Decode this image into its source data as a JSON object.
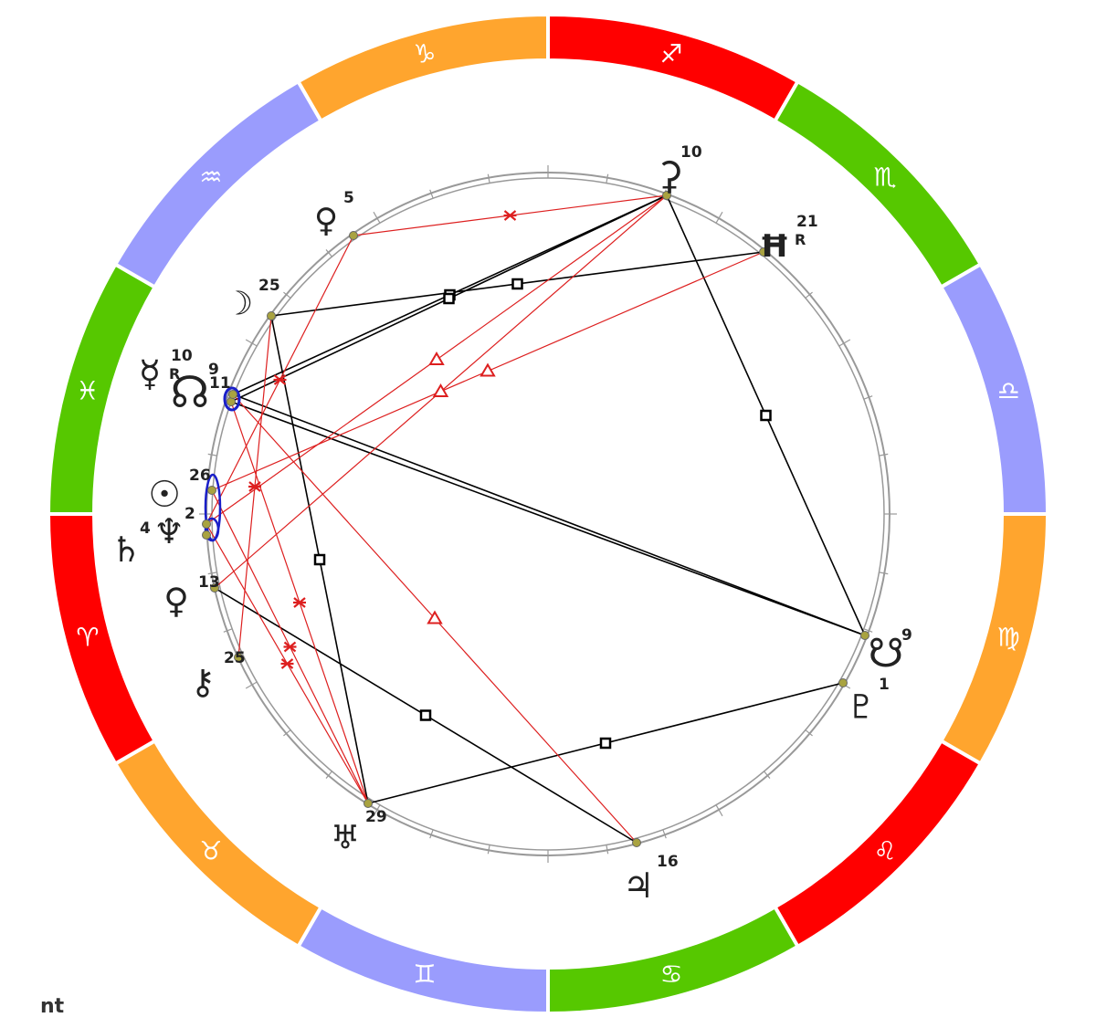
{
  "footer_label": "nt",
  "colors": {
    "fire": "#ff0000",
    "earth": "#ffa52e",
    "air": "#9a9cfd",
    "water": "#56c800",
    "aspect_hard": "#000000",
    "aspect_soft": "#dd1f1f",
    "stellium": "#1a1fc9",
    "ring": "#999999",
    "planet_dot": "#a9a340"
  },
  "zodiac_segments": [
    {
      "name": "Sagittarius",
      "symbol": "♐",
      "element": "fire"
    },
    {
      "name": "Scorpio",
      "symbol": "♏",
      "element": "water"
    },
    {
      "name": "Libra",
      "symbol": "♎",
      "element": "air"
    },
    {
      "name": "Virgo",
      "symbol": "♍",
      "element": "earth"
    },
    {
      "name": "Leo",
      "symbol": "♌",
      "element": "fire"
    },
    {
      "name": "Cancer",
      "symbol": "♋",
      "element": "water"
    },
    {
      "name": "Gemini",
      "symbol": "♊",
      "element": "air"
    },
    {
      "name": "Taurus",
      "symbol": "♉",
      "element": "earth"
    },
    {
      "name": "Aries",
      "symbol": "♈",
      "element": "fire"
    },
    {
      "name": "Pisces",
      "symbol": "♓",
      "element": "water"
    },
    {
      "name": "Aquarius",
      "symbol": "♒",
      "element": "air"
    },
    {
      "name": "Capricorn",
      "symbol": "♑",
      "element": "earth"
    }
  ],
  "planets": [
    {
      "id": "ceres",
      "symbol": "⚳",
      "degree": "10",
      "retro": ""
    },
    {
      "id": "uranus-h",
      "symbol": "Ħ",
      "degree": "21",
      "retro": "R"
    },
    {
      "id": "pallas",
      "symbol": "♀",
      "degree": "5",
      "retro": ""
    },
    {
      "id": "moon",
      "symbol": "☽",
      "degree": "25",
      "retro": ""
    },
    {
      "id": "mercury",
      "symbol": "☿",
      "degree": "10",
      "retro": "R"
    },
    {
      "id": "north-node",
      "symbol": "☊",
      "degree": "9",
      "retro": ""
    },
    {
      "id": "stellium-extra",
      "symbol": "",
      "degree": "11",
      "retro": ""
    },
    {
      "id": "sun",
      "symbol": "☉",
      "degree": "26",
      "retro": ""
    },
    {
      "id": "neptune",
      "symbol": "♆",
      "degree": "2",
      "retro": ""
    },
    {
      "id": "saturn",
      "symbol": "♄",
      "degree": "4",
      "retro": ""
    },
    {
      "id": "venus",
      "symbol": "♀",
      "degree": "13",
      "retro": ""
    },
    {
      "id": "chiron",
      "symbol": "⚷",
      "degree": "25",
      "retro": ""
    },
    {
      "id": "uranus",
      "symbol": "♅",
      "degree": "29",
      "retro": ""
    },
    {
      "id": "jupiter",
      "symbol": "♃",
      "degree": "16",
      "retro": ""
    },
    {
      "id": "pluto",
      "symbol": "♇",
      "degree": "1",
      "retro": ""
    },
    {
      "id": "south-node",
      "symbol": "☋",
      "degree": "9",
      "retro": ""
    }
  ],
  "aspects": [
    {
      "from": "pallas",
      "to": "ceres",
      "type": "sextile"
    },
    {
      "from": "moon",
      "to": "uranus-h",
      "type": "square"
    },
    {
      "from": "north-node",
      "to": "ceres",
      "type": "square"
    },
    {
      "from": "mercury",
      "to": "ceres",
      "type": "square"
    },
    {
      "from": "ceres",
      "to": "south-node",
      "type": "square"
    },
    {
      "from": "mercury",
      "to": "south-node",
      "type": "opposition"
    },
    {
      "from": "north-node",
      "to": "south-node",
      "type": "opposition"
    },
    {
      "from": "moon",
      "to": "uranus",
      "type": "square"
    },
    {
      "from": "venus",
      "to": "jupiter",
      "type": "square"
    },
    {
      "from": "uranus",
      "to": "pluto",
      "type": "square"
    },
    {
      "from": "ceres",
      "to": "neptune",
      "type": "trine"
    },
    {
      "from": "uranus-h",
      "to": "sun",
      "type": "trine"
    },
    {
      "from": "north-node",
      "to": "jupiter",
      "type": "trine"
    },
    {
      "from": "sun",
      "to": "uranus",
      "type": "sextile"
    },
    {
      "from": "pallas",
      "to": "neptune",
      "type": "sextile"
    },
    {
      "from": "neptune",
      "to": "uranus",
      "type": "sextile"
    },
    {
      "from": "chiron",
      "to": "moon",
      "type": "sextile"
    },
    {
      "from": "mercury",
      "to": "uranus",
      "type": "sextile"
    },
    {
      "from": "venus",
      "to": "ceres",
      "type": "trine"
    }
  ]
}
